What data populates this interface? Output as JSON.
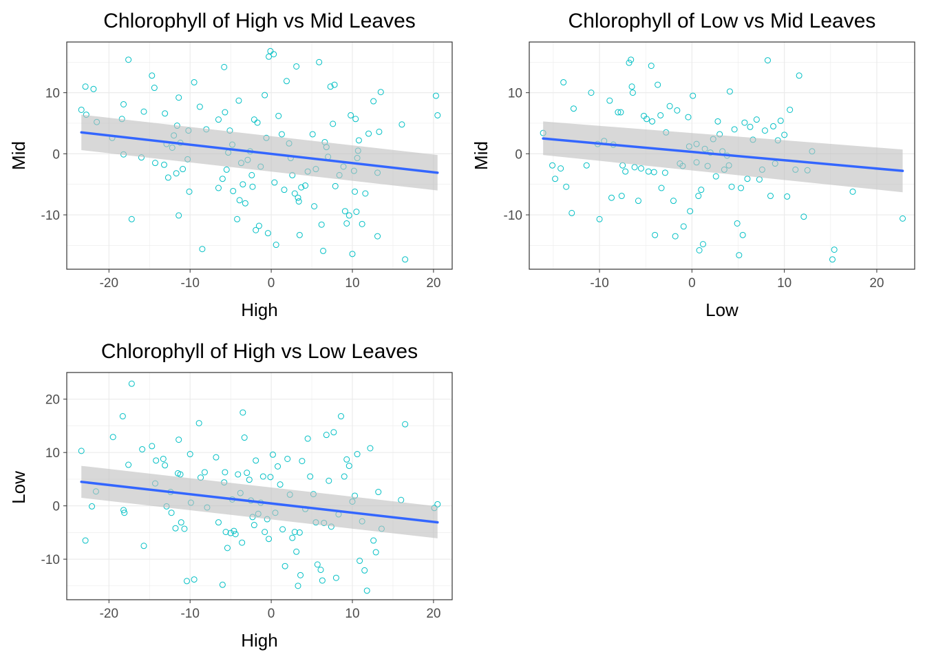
{
  "colors": {
    "points": "#00BFC4",
    "line": "#3366FF",
    "band": "#BEBEBE",
    "grid": "#EBEBEB",
    "border": "#333333"
  },
  "chart_data": [
    {
      "type": "scatter",
      "title": "Chlorophyll of High vs Mid Leaves",
      "xlabel": "High",
      "ylabel": "Mid",
      "xlim": [
        -25.2,
        22.3
      ],
      "ylim": [
        -18.9,
        18.3
      ],
      "xticks": [
        -20,
        -10,
        0,
        10,
        20
      ],
      "yticks": [
        -10,
        0,
        10
      ],
      "grid": true,
      "fit": {
        "x0": -23.4,
        "y0": 3.5,
        "x1": 20.5,
        "y1": -3.1,
        "lo0": 0.6,
        "hi0": 6.4,
        "lo1": -6.0,
        "hi1": -0.2
      },
      "points": [
        [
          -23.4,
          7.2
        ],
        [
          -22.9,
          11.0
        ],
        [
          -22.8,
          6.4
        ],
        [
          -21.9,
          10.6
        ],
        [
          -21.5,
          5.2
        ],
        [
          -19.6,
          2.6
        ],
        [
          -18.2,
          8.1
        ],
        [
          -18.4,
          5.7
        ],
        [
          -18.2,
          -0.1
        ],
        [
          -17.6,
          15.4
        ],
        [
          -17.2,
          -10.7
        ],
        [
          -16.0,
          -0.6
        ],
        [
          -15.7,
          6.9
        ],
        [
          -14.7,
          12.8
        ],
        [
          -14.4,
          10.8
        ],
        [
          -14.3,
          -1.5
        ],
        [
          -13.2,
          -1.8
        ],
        [
          -13.1,
          6.6
        ],
        [
          -12.9,
          1.6
        ],
        [
          -12.7,
          -3.9
        ],
        [
          -12.2,
          1.0
        ],
        [
          -12.0,
          3.0
        ],
        [
          -11.7,
          -3.2
        ],
        [
          -11.6,
          4.6
        ],
        [
          -11.4,
          9.2
        ],
        [
          -11.4,
          -10.1
        ],
        [
          -11.2,
          1.8
        ],
        [
          -10.9,
          -2.5
        ],
        [
          -10.3,
          -0.9
        ],
        [
          -10.2,
          3.8
        ],
        [
          -10.1,
          -6.2
        ],
        [
          -9.5,
          11.7
        ],
        [
          -8.8,
          7.7
        ],
        [
          -8.5,
          -15.6
        ],
        [
          -8.0,
          4.0
        ],
        [
          -6.5,
          5.6
        ],
        [
          -6.5,
          -5.6
        ],
        [
          -6.0,
          -4.1
        ],
        [
          -5.8,
          14.2
        ],
        [
          -5.7,
          6.8
        ],
        [
          -5.5,
          -2.6
        ],
        [
          -5.3,
          0.2
        ],
        [
          -5.1,
          3.8
        ],
        [
          -4.8,
          1.5
        ],
        [
          -4.7,
          -6.1
        ],
        [
          -4.2,
          -10.7
        ],
        [
          -4.0,
          8.7
        ],
        [
          -3.9,
          -7.6
        ],
        [
          -3.7,
          -1.5
        ],
        [
          -3.5,
          -5.0
        ],
        [
          -3.2,
          -8.1
        ],
        [
          -2.9,
          -1.0
        ],
        [
          -2.6,
          0.4
        ],
        [
          -2.4,
          -3.5
        ],
        [
          -2.3,
          -5.4
        ],
        [
          -2.1,
          5.6
        ],
        [
          -1.9,
          -12.5
        ],
        [
          -1.7,
          5.1
        ],
        [
          -1.5,
          -11.8
        ],
        [
          -1.3,
          -2.1
        ],
        [
          -0.8,
          9.6
        ],
        [
          -0.6,
          2.6
        ],
        [
          -0.4,
          -13.0
        ],
        [
          -0.3,
          15.9
        ],
        [
          -0.1,
          16.8
        ],
        [
          0.3,
          16.3
        ],
        [
          0.4,
          -4.7
        ],
        [
          0.6,
          -14.9
        ],
        [
          0.9,
          6.2
        ],
        [
          1.3,
          3.2
        ],
        [
          1.6,
          -5.9
        ],
        [
          1.9,
          11.9
        ],
        [
          2.2,
          1.7
        ],
        [
          2.4,
          -0.7
        ],
        [
          2.6,
          -3.5
        ],
        [
          2.9,
          -6.5
        ],
        [
          3.1,
          14.3
        ],
        [
          3.3,
          -7.2
        ],
        [
          3.4,
          -7.8
        ],
        [
          3.5,
          -13.3
        ],
        [
          3.7,
          -5.5
        ],
        [
          4.2,
          -5.2
        ],
        [
          4.5,
          -2.9
        ],
        [
          5.1,
          3.2
        ],
        [
          5.3,
          -8.6
        ],
        [
          5.5,
          -2.5
        ],
        [
          5.9,
          15.0
        ],
        [
          6.2,
          -11.6
        ],
        [
          6.4,
          -15.9
        ],
        [
          6.6,
          1.9
        ],
        [
          6.8,
          1.1
        ],
        [
          7.0,
          -0.5
        ],
        [
          7.3,
          11.0
        ],
        [
          7.6,
          4.9
        ],
        [
          7.8,
          11.3
        ],
        [
          7.9,
          -5.3
        ],
        [
          8.4,
          -3.5
        ],
        [
          8.9,
          -2.1
        ],
        [
          9.1,
          -9.4
        ],
        [
          9.3,
          -11.4
        ],
        [
          9.6,
          -10.1
        ],
        [
          9.8,
          6.3
        ],
        [
          10.0,
          -16.4
        ],
        [
          10.2,
          -2.8
        ],
        [
          10.3,
          -6.2
        ],
        [
          10.4,
          5.7
        ],
        [
          10.5,
          -9.5
        ],
        [
          10.6,
          -0.7
        ],
        [
          10.7,
          0.5
        ],
        [
          10.8,
          2.2
        ],
        [
          11.2,
          -11.5
        ],
        [
          11.6,
          -6.5
        ],
        [
          12.0,
          3.3
        ],
        [
          12.6,
          8.6
        ],
        [
          13.1,
          -13.5
        ],
        [
          13.1,
          -3.1
        ],
        [
          13.3,
          3.6
        ],
        [
          13.5,
          10.1
        ],
        [
          16.1,
          4.8
        ],
        [
          16.5,
          -17.3
        ],
        [
          20.3,
          9.5
        ],
        [
          20.5,
          6.3
        ]
      ]
    },
    {
      "type": "scatter",
      "title": "Chlorophyll of Low vs Mid Leaves",
      "xlabel": "Low",
      "ylabel": "Mid",
      "xlim": [
        -17.6,
        24.1
      ],
      "ylim": [
        -18.9,
        18.3
      ],
      "xticks": [
        -10,
        0,
        10,
        20
      ],
      "yticks": [
        -10,
        0,
        10
      ],
      "grid": true,
      "fit": {
        "x0": -16.1,
        "y0": 2.5,
        "x1": 22.8,
        "y1": -2.8,
        "lo0": -0.2,
        "hi0": 5.3,
        "lo1": -6.3,
        "hi1": 0.7
      },
      "points": [
        [
          -16.1,
          3.4
        ],
        [
          -15.1,
          -1.9
        ],
        [
          -14.8,
          -4.1
        ],
        [
          -14.2,
          -2.4
        ],
        [
          -13.9,
          11.7
        ],
        [
          -13.6,
          -5.4
        ],
        [
          -13.0,
          -9.7
        ],
        [
          -12.8,
          7.4
        ],
        [
          -11.4,
          -1.9
        ],
        [
          -10.9,
          10.0
        ],
        [
          -10.2,
          1.6
        ],
        [
          -10.0,
          -10.7
        ],
        [
          -9.5,
          2.1
        ],
        [
          -8.9,
          8.7
        ],
        [
          -8.7,
          -7.2
        ],
        [
          -8.5,
          1.5
        ],
        [
          -8.0,
          6.8
        ],
        [
          -7.7,
          6.8
        ],
        [
          -7.6,
          -6.9
        ],
        [
          -7.5,
          -1.9
        ],
        [
          -7.2,
          -2.9
        ],
        [
          -6.8,
          14.9
        ],
        [
          -6.6,
          15.4
        ],
        [
          -6.5,
          11.0
        ],
        [
          -6.4,
          10.0
        ],
        [
          -6.2,
          -2.2
        ],
        [
          -5.8,
          -7.7
        ],
        [
          -5.5,
          -2.4
        ],
        [
          -5.2,
          6.2
        ],
        [
          -4.9,
          5.7
        ],
        [
          -4.7,
          -2.9
        ],
        [
          -4.4,
          14.4
        ],
        [
          -4.3,
          5.3
        ],
        [
          -4.1,
          -3.0
        ],
        [
          -4.0,
          -13.3
        ],
        [
          -3.7,
          11.3
        ],
        [
          -3.4,
          6.3
        ],
        [
          -3.3,
          -5.6
        ],
        [
          -2.9,
          -3.1
        ],
        [
          -2.8,
          3.5
        ],
        [
          -2.4,
          7.8
        ],
        [
          -2.0,
          -7.7
        ],
        [
          -1.8,
          -13.5
        ],
        [
          -1.6,
          7.1
        ],
        [
          -1.3,
          -1.6
        ],
        [
          -1.0,
          -2.0
        ],
        [
          -0.9,
          -11.9
        ],
        [
          -0.4,
          6.0
        ],
        [
          -0.3,
          1.2
        ],
        [
          -0.2,
          -9.4
        ],
        [
          0.1,
          9.5
        ],
        [
          0.5,
          -1.4
        ],
        [
          0.5,
          1.6
        ],
        [
          0.7,
          -6.9
        ],
        [
          0.8,
          -15.8
        ],
        [
          1.0,
          -5.9
        ],
        [
          1.2,
          -14.8
        ],
        [
          1.4,
          0.8
        ],
        [
          1.7,
          -2.0
        ],
        [
          2.0,
          0.2
        ],
        [
          2.3,
          2.4
        ],
        [
          2.6,
          -3.7
        ],
        [
          2.8,
          5.3
        ],
        [
          3.0,
          3.2
        ],
        [
          3.3,
          0.4
        ],
        [
          3.5,
          -2.6
        ],
        [
          3.8,
          -0.3
        ],
        [
          4.0,
          -1.9
        ],
        [
          4.1,
          10.2
        ],
        [
          4.3,
          -5.4
        ],
        [
          4.6,
          4.0
        ],
        [
          4.9,
          -11.4
        ],
        [
          5.1,
          -16.6
        ],
        [
          5.3,
          -5.6
        ],
        [
          5.5,
          -13.3
        ],
        [
          5.7,
          5.1
        ],
        [
          6.0,
          -4.1
        ],
        [
          6.3,
          4.4
        ],
        [
          6.6,
          2.3
        ],
        [
          7.0,
          5.6
        ],
        [
          7.3,
          -4.2
        ],
        [
          7.6,
          -2.6
        ],
        [
          7.9,
          3.8
        ],
        [
          8.2,
          15.3
        ],
        [
          8.5,
          -6.9
        ],
        [
          8.8,
          4.5
        ],
        [
          9.0,
          -1.6
        ],
        [
          9.3,
          2.2
        ],
        [
          9.6,
          5.4
        ],
        [
          10.0,
          3.1
        ],
        [
          10.3,
          -7.0
        ],
        [
          10.6,
          7.2
        ],
        [
          11.2,
          -2.6
        ],
        [
          11.6,
          12.8
        ],
        [
          12.1,
          -10.3
        ],
        [
          12.5,
          -2.7
        ],
        [
          13.0,
          0.4
        ],
        [
          15.2,
          -17.3
        ],
        [
          15.4,
          -15.7
        ],
        [
          17.4,
          -6.2
        ],
        [
          22.8,
          -10.6
        ]
      ]
    },
    {
      "type": "scatter",
      "title": "Chlorophyll of High vs Low Leaves",
      "xlabel": "High",
      "ylabel": "Low",
      "xlim": [
        -25.2,
        22.3
      ],
      "ylim": [
        -17.6,
        25.0
      ],
      "xticks": [
        -20,
        -10,
        0,
        10,
        20
      ],
      "yticks": [
        -10,
        0,
        10,
        20
      ],
      "grid": true,
      "fit": {
        "x0": -23.4,
        "y0": 4.5,
        "x1": 20.5,
        "y1": -3.1,
        "lo0": 1.5,
        "hi0": 7.5,
        "lo1": -6.1,
        "hi1": -0.1
      },
      "points": [
        [
          -23.4,
          10.3
        ],
        [
          -22.9,
          -6.5
        ],
        [
          -22.1,
          -0.1
        ],
        [
          -21.6,
          2.7
        ],
        [
          -19.5,
          12.9
        ],
        [
          -18.3,
          16.8
        ],
        [
          -18.2,
          -0.8
        ],
        [
          -18.1,
          -1.3
        ],
        [
          -17.6,
          7.7
        ],
        [
          -17.2,
          22.9
        ],
        [
          -15.9,
          10.6
        ],
        [
          -15.7,
          -7.5
        ],
        [
          -14.7,
          11.2
        ],
        [
          -14.3,
          4.2
        ],
        [
          -14.2,
          8.5
        ],
        [
          -13.3,
          8.8
        ],
        [
          -13.1,
          7.6
        ],
        [
          -12.9,
          -0.1
        ],
        [
          -12.4,
          2.6
        ],
        [
          -12.3,
          -1.3
        ],
        [
          -11.8,
          -4.2
        ],
        [
          -11.5,
          6.1
        ],
        [
          -11.4,
          12.4
        ],
        [
          -11.2,
          5.9
        ],
        [
          -11.1,
          -3.1
        ],
        [
          -10.7,
          -4.3
        ],
        [
          -10.4,
          -14.1
        ],
        [
          -10.0,
          9.7
        ],
        [
          -9.9,
          0.6
        ],
        [
          -9.5,
          -13.8
        ],
        [
          -8.9,
          15.5
        ],
        [
          -8.7,
          5.3
        ],
        [
          -8.2,
          6.3
        ],
        [
          -7.9,
          -0.3
        ],
        [
          -6.8,
          9.1
        ],
        [
          -6.5,
          -3.1
        ],
        [
          -6.0,
          -14.8
        ],
        [
          -5.8,
          4.4
        ],
        [
          -5.7,
          6.3
        ],
        [
          -5.6,
          -4.9
        ],
        [
          -5.4,
          -7.9
        ],
        [
          -5.0,
          -5.1
        ],
        [
          -4.8,
          1.2
        ],
        [
          -4.6,
          -4.7
        ],
        [
          -4.4,
          -5.3
        ],
        [
          -4.1,
          5.9
        ],
        [
          -3.8,
          2.4
        ],
        [
          -3.6,
          -6.9
        ],
        [
          -3.5,
          17.5
        ],
        [
          -3.3,
          12.8
        ],
        [
          -3.0,
          6.2
        ],
        [
          -2.7,
          4.9
        ],
        [
          -2.5,
          1.0
        ],
        [
          -2.3,
          -2.1
        ],
        [
          -2.1,
          -3.6
        ],
        [
          -1.9,
          8.5
        ],
        [
          -1.6,
          -1.5
        ],
        [
          -1.3,
          0.6
        ],
        [
          -1.0,
          5.5
        ],
        [
          -0.8,
          -4.9
        ],
        [
          -0.5,
          -2.5
        ],
        [
          -0.3,
          -6.2
        ],
        [
          -0.1,
          5.4
        ],
        [
          0.2,
          9.6
        ],
        [
          0.5,
          -1.3
        ],
        [
          0.8,
          7.4
        ],
        [
          1.1,
          4.0
        ],
        [
          1.4,
          -4.4
        ],
        [
          1.7,
          -11.3
        ],
        [
          2.0,
          8.8
        ],
        [
          2.3,
          2.1
        ],
        [
          2.6,
          -6.0
        ],
        [
          2.9,
          -4.9
        ],
        [
          3.1,
          -8.6
        ],
        [
          3.3,
          -15.0
        ],
        [
          3.5,
          -5.0
        ],
        [
          3.6,
          -13.0
        ],
        [
          3.8,
          8.4
        ],
        [
          4.2,
          -0.6
        ],
        [
          4.5,
          12.6
        ],
        [
          4.8,
          5.5
        ],
        [
          5.2,
          2.2
        ],
        [
          5.5,
          -3.1
        ],
        [
          5.7,
          -11.0
        ],
        [
          6.1,
          -12.0
        ],
        [
          6.3,
          -14.0
        ],
        [
          6.5,
          -3.2
        ],
        [
          6.8,
          13.3
        ],
        [
          7.1,
          4.7
        ],
        [
          7.4,
          -3.9
        ],
        [
          7.7,
          13.8
        ],
        [
          8.0,
          -13.5
        ],
        [
          8.3,
          -1.6
        ],
        [
          8.6,
          16.8
        ],
        [
          9.0,
          5.5
        ],
        [
          9.3,
          8.7
        ],
        [
          9.6,
          7.5
        ],
        [
          10.0,
          0.8
        ],
        [
          10.3,
          1.9
        ],
        [
          10.6,
          9.7
        ],
        [
          10.9,
          -10.3
        ],
        [
          11.2,
          -2.9
        ],
        [
          11.5,
          -12.1
        ],
        [
          11.8,
          -15.9
        ],
        [
          12.2,
          10.8
        ],
        [
          12.6,
          -6.5
        ],
        [
          12.9,
          -8.7
        ],
        [
          13.2,
          2.6
        ],
        [
          13.6,
          -4.3
        ],
        [
          16.0,
          1.1
        ],
        [
          16.5,
          15.3
        ],
        [
          20.1,
          -0.4
        ],
        [
          20.5,
          0.3
        ]
      ]
    }
  ]
}
